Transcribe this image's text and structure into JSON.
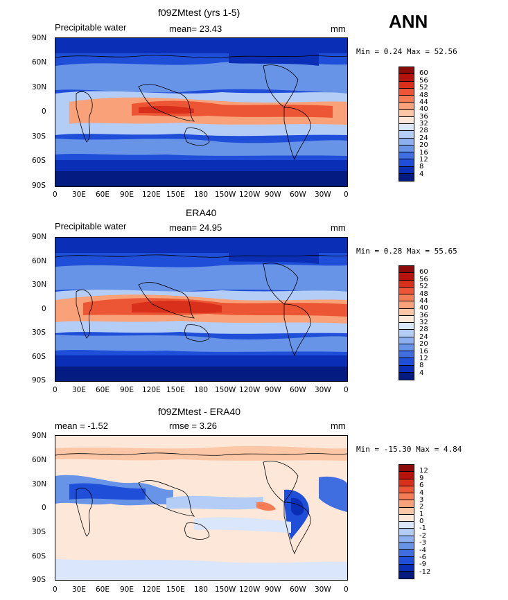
{
  "season_label": "ANN",
  "panels": [
    {
      "title": "f09ZMtest (yrs 1-5)",
      "left_label": "Precipitable water",
      "center_label": "mean=  23.43",
      "right_label": "mm",
      "minmax": "Min =   0.24 Max =  52.56",
      "colorbar_labels": [
        "60",
        "56",
        "52",
        "48",
        "44",
        "40",
        "36",
        "32",
        "28",
        "24",
        "20",
        "16",
        "12",
        "8",
        "4"
      ],
      "colors": [
        "#8b0a0a",
        "#b5140c",
        "#d9301c",
        "#ec5634",
        "#f47d55",
        "#f9a27a",
        "#fcc7a7",
        "#fde7d9",
        "#d9e6fb",
        "#b3cdf6",
        "#8cb0ef",
        "#6894e8",
        "#3f6ee0",
        "#1f4fd8",
        "#0a2fb6",
        "#041c82"
      ],
      "type": "absolute"
    },
    {
      "title": "ERA40",
      "left_label": "Precipitable water",
      "center_label": "mean=  24.95",
      "right_label": "mm",
      "minmax": "Min =   0.28 Max =  55.65",
      "colorbar_labels": [
        "60",
        "56",
        "52",
        "48",
        "44",
        "40",
        "36",
        "32",
        "28",
        "24",
        "20",
        "16",
        "12",
        "8",
        "4"
      ],
      "colors": [
        "#8b0a0a",
        "#b5140c",
        "#d9301c",
        "#ec5634",
        "#f47d55",
        "#f9a27a",
        "#fcc7a7",
        "#fde7d9",
        "#d9e6fb",
        "#b3cdf6",
        "#8cb0ef",
        "#6894e8",
        "#3f6ee0",
        "#1f4fd8",
        "#0a2fb6",
        "#041c82"
      ],
      "type": "absolute"
    },
    {
      "title": "f09ZMtest - ERA40",
      "left_label": "mean =  -1.52",
      "center_label": "rmse =   3.26",
      "right_label": "mm",
      "minmax": "Min = -15.30 Max =   4.84",
      "colorbar_labels": [
        "12",
        "9",
        "6",
        "4",
        "3",
        "2",
        "1",
        "0",
        "-1",
        "-2",
        "-3",
        "-4",
        "-6",
        "-9",
        "-12"
      ],
      "colors": [
        "#8b0a0a",
        "#b5140c",
        "#d9301c",
        "#ec5634",
        "#f47d55",
        "#f9a27a",
        "#fcc7a7",
        "#fde7d9",
        "#d9e6fb",
        "#b3cdf6",
        "#8cb0ef",
        "#6894e8",
        "#3f6ee0",
        "#1f4fd8",
        "#0a2fb6",
        "#041c82"
      ],
      "type": "difference"
    }
  ],
  "lat_ticks": [
    "90N",
    "60N",
    "30N",
    "0",
    "30S",
    "60S",
    "90S"
  ],
  "lon_ticks": [
    "0",
    "30E",
    "60E",
    "90E",
    "120E",
    "150E",
    "180",
    "150W",
    "120W",
    "90W",
    "60W",
    "30W",
    "0"
  ]
}
